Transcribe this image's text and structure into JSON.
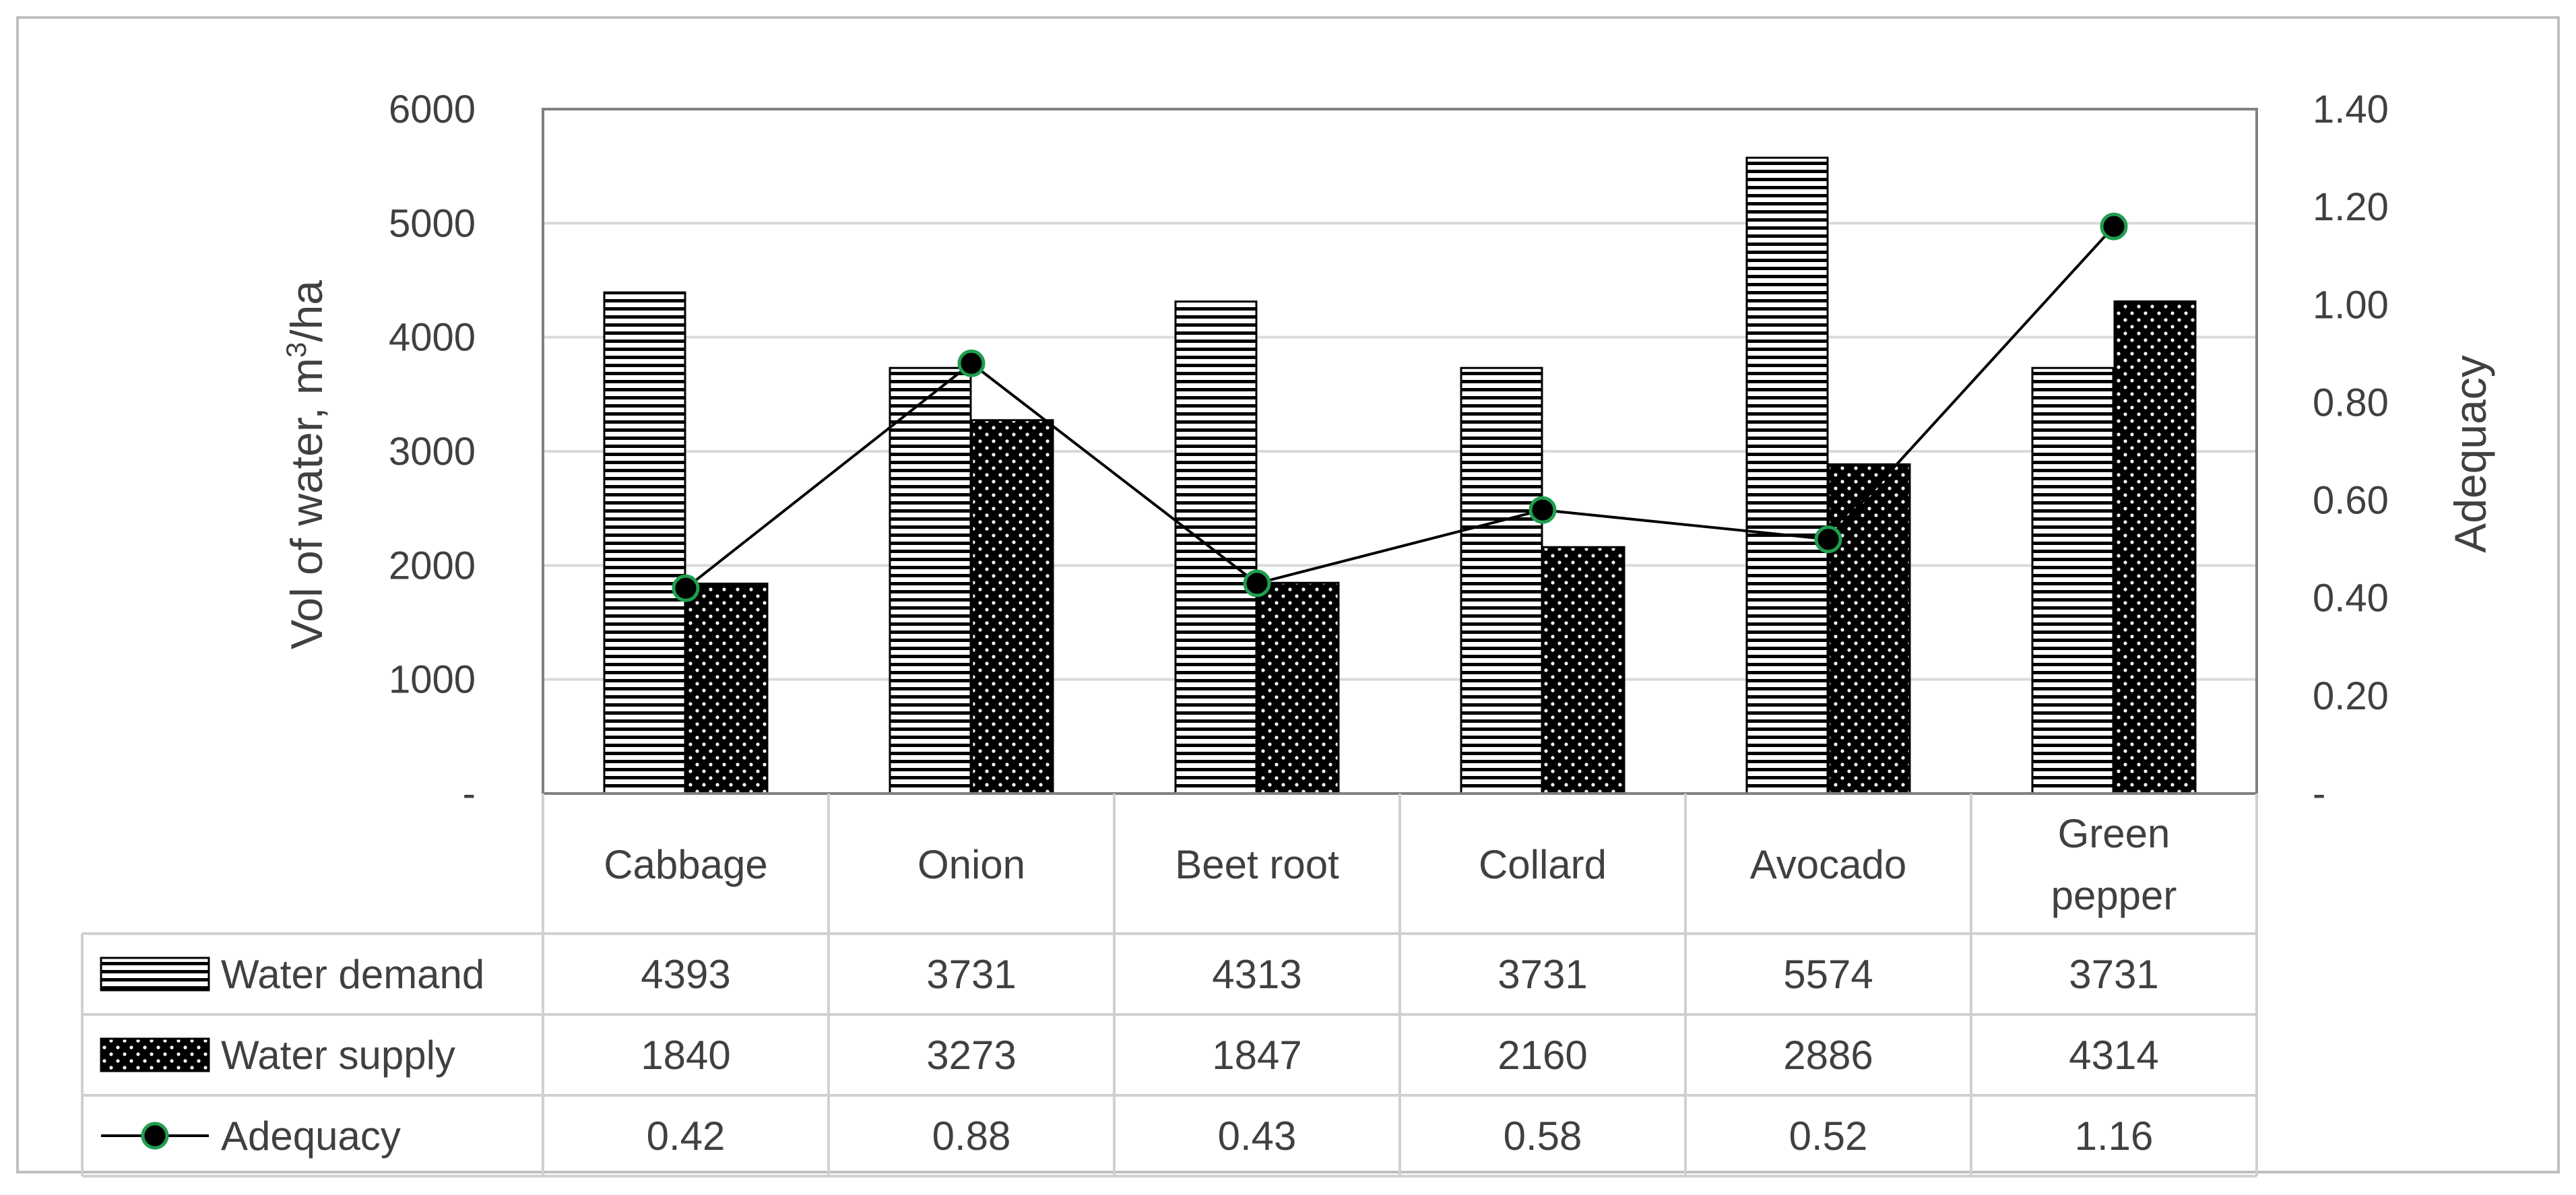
{
  "chart_data": {
    "type": "bar",
    "categories": [
      "Cabbage",
      "Onion",
      "Beet root",
      "Collard",
      "Avocado",
      "Green pepper"
    ],
    "category_lines": [
      [
        "Cabbage"
      ],
      [
        "Onion"
      ],
      [
        "Beet root"
      ],
      [
        "Collard"
      ],
      [
        "Avocado"
      ],
      [
        "Green",
        "pepper"
      ]
    ],
    "series": [
      {
        "name": "Water demand",
        "axis": "left",
        "kind": "bar",
        "pattern": "horizontal-stripes",
        "values": [
          4393,
          3731,
          4313,
          3731,
          5574,
          3731
        ]
      },
      {
        "name": "Water supply",
        "axis": "left",
        "kind": "bar",
        "pattern": "dotted",
        "values": [
          1840,
          3273,
          1847,
          2160,
          2886,
          4314
        ]
      },
      {
        "name": "Adequacy",
        "axis": "right",
        "kind": "line",
        "marker": "circle",
        "values": [
          0.42,
          0.88,
          0.43,
          0.58,
          0.52,
          1.16
        ]
      }
    ],
    "data_table_values": {
      "Water demand": [
        "4393",
        "3731",
        "4313",
        "3731",
        "5574",
        "3731"
      ],
      "Water supply": [
        "1840",
        "3273",
        "1847",
        "2160",
        "2886",
        "4314"
      ],
      "Adequacy": [
        "0.42",
        "0.88",
        "0.43",
        "0.58",
        "0.52",
        "1.16"
      ]
    },
    "ylabel_left": {
      "before": "Vol of water, m",
      "sup": "3",
      "after": "/ha"
    },
    "ylabel_right": "Adequacy",
    "ylim_left": [
      0,
      6000
    ],
    "ylim_right": [
      0,
      1.4
    ],
    "left_ticks": [
      {
        "value": 0,
        "label": "-"
      },
      {
        "value": 1000,
        "label": "1000"
      },
      {
        "value": 2000,
        "label": "2000"
      },
      {
        "value": 3000,
        "label": "3000"
      },
      {
        "value": 4000,
        "label": "4000"
      },
      {
        "value": 5000,
        "label": "5000"
      },
      {
        "value": 6000,
        "label": "6000"
      }
    ],
    "right_ticks": [
      {
        "value": 0,
        "label": "-"
      },
      {
        "value": 0.2,
        "label": "0.20"
      },
      {
        "value": 0.4,
        "label": "0.40"
      },
      {
        "value": 0.6,
        "label": "0.60"
      },
      {
        "value": 0.8,
        "label": "0.80"
      },
      {
        "value": 1.0,
        "label": "1.00"
      },
      {
        "value": 1.2,
        "label": "1.20"
      },
      {
        "value": 1.4,
        "label": "1.40"
      }
    ],
    "grid": true,
    "legend_placement": "data-table-below",
    "colors": {
      "bar_fill": "#000000",
      "bar_background": "#ffffff",
      "line": "#000000",
      "marker_fill": "#000000",
      "marker_edge": "#1f9f4f",
      "gridline": "#d9d9d9",
      "text": "#404040",
      "frame": "#bfbfbf"
    }
  }
}
